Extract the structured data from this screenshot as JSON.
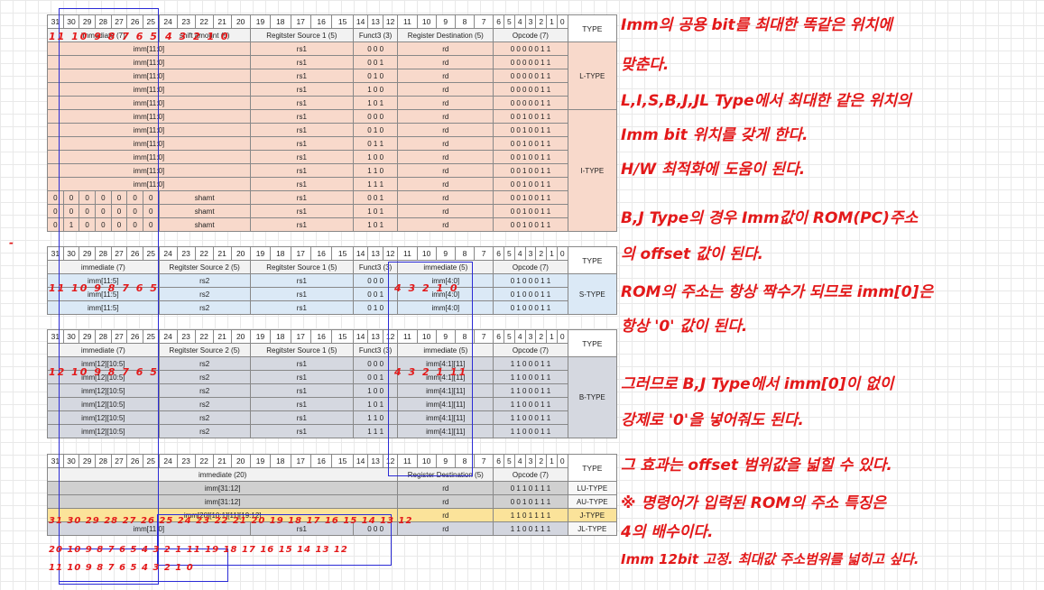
{
  "bit_headers_full": [
    "31",
    "30",
    "29",
    "28",
    "27",
    "26",
    "25",
    "24",
    "23",
    "22",
    "21",
    "20",
    "19",
    "18",
    "17",
    "16",
    "15",
    "14",
    "13",
    "12",
    "11",
    "10",
    "9",
    "8",
    "7",
    "6",
    "5",
    "4",
    "3",
    "2",
    "1",
    "0"
  ],
  "type_header": "TYPE",
  "table1": {
    "fields": [
      "immediate (7)",
      "shift amount (5)",
      "Regitster Source 1 (5)",
      "Funct3 (3)",
      "Register Destination (5)",
      "Opcode (7)"
    ],
    "rows": [
      {
        "imm": "imm[11:0]",
        "rs1": "rs1",
        "f3": "0  0  0",
        "rd": "rd",
        "op": "0 0 0 0 0 1 1"
      },
      {
        "imm": "imm[11:0]",
        "rs1": "rs1",
        "f3": "0  0  1",
        "rd": "rd",
        "op": "0 0 0 0 0 1 1"
      },
      {
        "imm": "imm[11:0]",
        "rs1": "rs1",
        "f3": "0  1  0",
        "rd": "rd",
        "op": "0 0 0 0 0 1 1"
      },
      {
        "imm": "imm[11:0]",
        "rs1": "rs1",
        "f3": "1  0  0",
        "rd": "rd",
        "op": "0 0 0 0 0 1 1"
      },
      {
        "imm": "imm[11:0]",
        "rs1": "rs1",
        "f3": "1  0  1",
        "rd": "rd",
        "op": "0 0 0 0 0 1 1"
      },
      {
        "imm": "imm[11:0]",
        "rs1": "rs1",
        "f3": "0  0  0",
        "rd": "rd",
        "op": "0 0 1 0 0 1 1"
      },
      {
        "imm": "imm[11:0]",
        "rs1": "rs1",
        "f3": "0  1  0",
        "rd": "rd",
        "op": "0 0 1 0 0 1 1"
      },
      {
        "imm": "imm[11:0]",
        "rs1": "rs1",
        "f3": "0  1  1",
        "rd": "rd",
        "op": "0 0 1 0 0 1 1"
      },
      {
        "imm": "imm[11:0]",
        "rs1": "rs1",
        "f3": "1  0  0",
        "rd": "rd",
        "op": "0 0 1 0 0 1 1"
      },
      {
        "imm": "imm[11:0]",
        "rs1": "rs1",
        "f3": "1  1  0",
        "rd": "rd",
        "op": "0 0 1 0 0 1 1"
      },
      {
        "imm": "imm[11:0]",
        "rs1": "rs1",
        "f3": "1  1  1",
        "rd": "rd",
        "op": "0 0 1 0 0 1 1"
      }
    ],
    "shamt_rows": [
      {
        "bits": [
          "0",
          "0",
          "0",
          "0",
          "0",
          "0",
          "0"
        ],
        "shamt": "shamt",
        "rs1": "rs1",
        "f3": "0  0  1",
        "rd": "rd",
        "op": "0 0 1 0 0 1 1"
      },
      {
        "bits": [
          "0",
          "0",
          "0",
          "0",
          "0",
          "0",
          "0"
        ],
        "shamt": "shamt",
        "rs1": "rs1",
        "f3": "1  0  1",
        "rd": "rd",
        "op": "0 0 1 0 0 1 1"
      },
      {
        "bits": [
          "0",
          "1",
          "0",
          "0",
          "0",
          "0",
          "0"
        ],
        "shamt": "shamt",
        "rs1": "rs1",
        "f3": "1  0  1",
        "rd": "rd",
        "op": "0 0 1 0 0 1 1"
      }
    ],
    "type_l": "L-TYPE",
    "type_i": "I-TYPE"
  },
  "table2": {
    "fields": [
      "immediate (7)",
      "Regitster Source 2 (5)",
      "Regitster Source 1 (5)",
      "Funct3 (3)",
      "immediate (5)",
      "Opcode (7)"
    ],
    "rows": [
      {
        "imm": "imm[11:5]",
        "rs2": "rs2",
        "rs1": "rs1",
        "f3": "0  0  0",
        "imm2": "imm[4:0]",
        "op": "0 1 0 0 0 1 1"
      },
      {
        "imm": "imm[11:5]",
        "rs2": "rs2",
        "rs1": "rs1",
        "f3": "0  0  1",
        "imm2": "imm[4:0]",
        "op": "0 1 0 0 0 1 1"
      },
      {
        "imm": "imm[11:5]",
        "rs2": "rs2",
        "rs1": "rs1",
        "f3": "0  1  0",
        "imm2": "imm[4:0]",
        "op": "0 1 0 0 0 1 1"
      }
    ],
    "type": "S-TYPE"
  },
  "table3": {
    "fields": [
      "immediate (7)",
      "Regitster Source 2 (5)",
      "Regitster Source 1 (5)",
      "Funct3 (3)",
      "immediate (5)",
      "Opcode (7)"
    ],
    "rows": [
      {
        "imm": "imm[12][10:5]",
        "rs2": "rs2",
        "rs1": "rs1",
        "f3": "0  0  0",
        "imm2": "imm[4:1][11]",
        "op": "1 1 0 0 0 1 1"
      },
      {
        "imm": "imm[12][10:5]",
        "rs2": "rs2",
        "rs1": "rs1",
        "f3": "0  0  1",
        "imm2": "imm[4:1][11]",
        "op": "1 1 0 0 0 1 1"
      },
      {
        "imm": "imm[12][10:5]",
        "rs2": "rs2",
        "rs1": "rs1",
        "f3": "1  0  0",
        "imm2": "imm[4:1][11]",
        "op": "1 1 0 0 0 1 1"
      },
      {
        "imm": "imm[12][10:5]",
        "rs2": "rs2",
        "rs1": "rs1",
        "f3": "1  0  1",
        "imm2": "imm[4:1][11]",
        "op": "1 1 0 0 0 1 1"
      },
      {
        "imm": "imm[12][10:5]",
        "rs2": "rs2",
        "rs1": "rs1",
        "f3": "1  1  0",
        "imm2": "imm[4:1][11]",
        "op": "1 1 0 0 0 1 1"
      },
      {
        "imm": "imm[12][10:5]",
        "rs2": "rs2",
        "rs1": "rs1",
        "f3": "1  1  1",
        "imm2": "imm[4:1][11]",
        "op": "1 1 0 0 0 1 1"
      }
    ],
    "type": "B-TYPE"
  },
  "table4": {
    "fields": [
      "immediate (20)",
      "Register Destination (5)",
      "Opcode (7)"
    ],
    "rows": [
      {
        "imm": "imm[31:12]",
        "rd": "rd",
        "op": "0 1 1 0 1 1 1",
        "type": "LU-TYPE"
      },
      {
        "imm": "imm[31:12]",
        "rd": "rd",
        "op": "0 0 1 0 1 1 1",
        "type": "AU-TYPE"
      },
      {
        "imm": "imm[20][10:1][11][19:12]",
        "rd": "rd",
        "op": "1 1 0 1 1 1 1",
        "type": "J-TYPE"
      }
    ],
    "jl_row": {
      "imm": "imm[11:0]",
      "rs1": "rs1",
      "f3": "0  0  0",
      "rd": "rd",
      "op": "1 1 0 0 1 1 1",
      "type": "JL-TYPE"
    }
  },
  "handwriting": {
    "t1_bits_left": "11 10 9 8 7 6 5",
    "t1_bits_mid": "4 3 2 1 0",
    "t2_bits_left": "11 10 9 8 7 6 5",
    "t2_bits_right": "4 3 2 1 0",
    "t3_bits_left": "12 10 9 8 7 6 5",
    "t3_bits_right": "4 3 2 1 11",
    "t4_lu": "31 30 29 28 27 26 25 24 23 22 21 20 19 18 17 16 15 14 13 12",
    "t4_j": "20 10 9 8 7 6 5 4 3 2 1 11 19 18 17 16 15 14 13 12",
    "t4_jl": "11 10 9 8 7 6 5 4 3 2 1 0",
    "notes": [
      "Imm의 공용 bit를 최대한 똑같은 위치에",
      "맞춘다.",
      "L,I,S,B,J,JL Type에서 최대한 같은 위치의",
      "Imm bit 위치를 갖게 한다.",
      "H/W 최적화에 도움이 된다.",
      "B,J Type의 경우 Imm값이 ROM(PC)주소",
      "의 offset 값이 된다.",
      "ROM의 주소는 항상 짝수가 되므로 imm[0]은",
      "항상 '0' 값이 된다.",
      "그러므로 B,J Type에서 imm[0]이 없이",
      "강제로 '0'을 넣어줘도 된다.",
      "그 효과는 offset 범위값을 넓힐 수 있다.",
      "※ 명령어가 입력된 ROM의 주소 특징은",
      "4의 배수이다.",
      "Imm 12bit 고정. 최대값 주소범위를 넓히고 싶다."
    ]
  }
}
